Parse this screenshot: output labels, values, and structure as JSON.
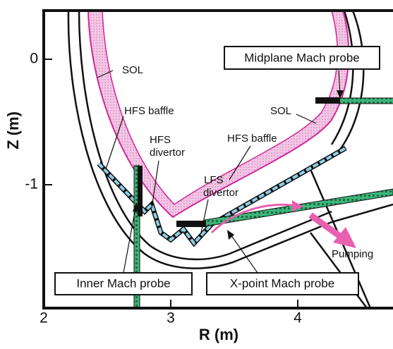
{
  "axes": {
    "x_label": "R (m)",
    "y_label": "Z (m)",
    "xticks": [
      2,
      3,
      4
    ],
    "yticks": [
      0,
      -1
    ]
  },
  "labels": {
    "sol_left": "SOL",
    "hfs_baffle_left": "HFS baffle",
    "hfs_divertor": [
      "HFS",
      "divertor"
    ],
    "lfs_divertor": [
      "LFS",
      "divertor"
    ],
    "hfs_baffle_right": "HFS baffle",
    "sol_right": "SOL",
    "pumping": "Pumping"
  },
  "probes": {
    "midplane": "Midplane Mach probe",
    "inner": "Inner Mach probe",
    "x_point": "X-point Mach probe"
  }
}
